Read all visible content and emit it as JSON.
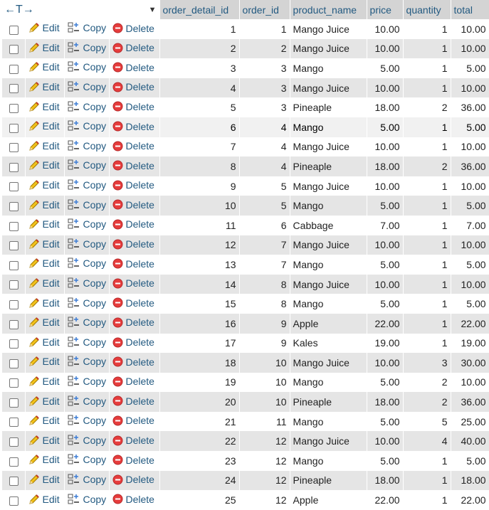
{
  "header": {
    "arrows_label": "←T→",
    "dropdown_glyph": "▼",
    "columns": [
      "order_detail_id",
      "order_id",
      "product_name",
      "price",
      "quantity",
      "total"
    ]
  },
  "actions": {
    "edit": "Edit",
    "copy": "Copy",
    "delete": "Delete"
  },
  "rows": [
    {
      "order_detail_id": "1",
      "order_id": "1",
      "product_name": "Mango Juice",
      "price": "10.00",
      "quantity": "1",
      "total": "10.00"
    },
    {
      "order_detail_id": "2",
      "order_id": "2",
      "product_name": "Mango Juice",
      "price": "10.00",
      "quantity": "1",
      "total": "10.00"
    },
    {
      "order_detail_id": "3",
      "order_id": "3",
      "product_name": "Mango",
      "price": "5.00",
      "quantity": "1",
      "total": "5.00"
    },
    {
      "order_detail_id": "4",
      "order_id": "3",
      "product_name": "Mango Juice",
      "price": "10.00",
      "quantity": "1",
      "total": "10.00"
    },
    {
      "order_detail_id": "5",
      "order_id": "3",
      "product_name": "Pineaple",
      "price": "18.00",
      "quantity": "2",
      "total": "36.00"
    },
    {
      "order_detail_id": "6",
      "order_id": "4",
      "product_name": "Mango",
      "price": "5.00",
      "quantity": "1",
      "total": "5.00"
    },
    {
      "order_detail_id": "7",
      "order_id": "4",
      "product_name": "Mango Juice",
      "price": "10.00",
      "quantity": "1",
      "total": "10.00"
    },
    {
      "order_detail_id": "8",
      "order_id": "4",
      "product_name": "Pineaple",
      "price": "18.00",
      "quantity": "2",
      "total": "36.00"
    },
    {
      "order_detail_id": "9",
      "order_id": "5",
      "product_name": "Mango Juice",
      "price": "10.00",
      "quantity": "1",
      "total": "10.00"
    },
    {
      "order_detail_id": "10",
      "order_id": "5",
      "product_name": "Mango",
      "price": "5.00",
      "quantity": "1",
      "total": "5.00"
    },
    {
      "order_detail_id": "11",
      "order_id": "6",
      "product_name": "Cabbage",
      "price": "7.00",
      "quantity": "1",
      "total": "7.00"
    },
    {
      "order_detail_id": "12",
      "order_id": "7",
      "product_name": "Mango Juice",
      "price": "10.00",
      "quantity": "1",
      "total": "10.00"
    },
    {
      "order_detail_id": "13",
      "order_id": "7",
      "product_name": "Mango",
      "price": "5.00",
      "quantity": "1",
      "total": "5.00"
    },
    {
      "order_detail_id": "14",
      "order_id": "8",
      "product_name": "Mango Juice",
      "price": "10.00",
      "quantity": "1",
      "total": "10.00"
    },
    {
      "order_detail_id": "15",
      "order_id": "8",
      "product_name": "Mango",
      "price": "5.00",
      "quantity": "1",
      "total": "5.00"
    },
    {
      "order_detail_id": "16",
      "order_id": "9",
      "product_name": "Apple",
      "price": "22.00",
      "quantity": "1",
      "total": "22.00"
    },
    {
      "order_detail_id": "17",
      "order_id": "9",
      "product_name": "Kales",
      "price": "19.00",
      "quantity": "1",
      "total": "19.00"
    },
    {
      "order_detail_id": "18",
      "order_id": "10",
      "product_name": "Mango Juice",
      "price": "10.00",
      "quantity": "3",
      "total": "30.00"
    },
    {
      "order_detail_id": "19",
      "order_id": "10",
      "product_name": "Mango",
      "price": "5.00",
      "quantity": "2",
      "total": "10.00"
    },
    {
      "order_detail_id": "20",
      "order_id": "10",
      "product_name": "Pineaple",
      "price": "18.00",
      "quantity": "2",
      "total": "36.00"
    },
    {
      "order_detail_id": "21",
      "order_id": "11",
      "product_name": "Mango",
      "price": "5.00",
      "quantity": "5",
      "total": "25.00"
    },
    {
      "order_detail_id": "22",
      "order_id": "12",
      "product_name": "Mango Juice",
      "price": "10.00",
      "quantity": "4",
      "total": "40.00"
    },
    {
      "order_detail_id": "23",
      "order_id": "12",
      "product_name": "Mango",
      "price": "5.00",
      "quantity": "1",
      "total": "5.00"
    },
    {
      "order_detail_id": "24",
      "order_id": "12",
      "product_name": "Pineaple",
      "price": "18.00",
      "quantity": "1",
      "total": "18.00"
    },
    {
      "order_detail_id": "25",
      "order_id": "12",
      "product_name": "Apple",
      "price": "22.00",
      "quantity": "1",
      "total": "22.00"
    }
  ],
  "hover_row_index": 5,
  "colors": {
    "header_bg": "#d4d4d4",
    "even_row_bg": "#e5e5e5",
    "hover_row_bg": "#f1f1f1",
    "link": "#235a81",
    "delete_icon": "#e63c3c"
  },
  "icons": {
    "edit": "pencil-icon",
    "copy": "copy-icon",
    "delete": "delete-icon"
  }
}
